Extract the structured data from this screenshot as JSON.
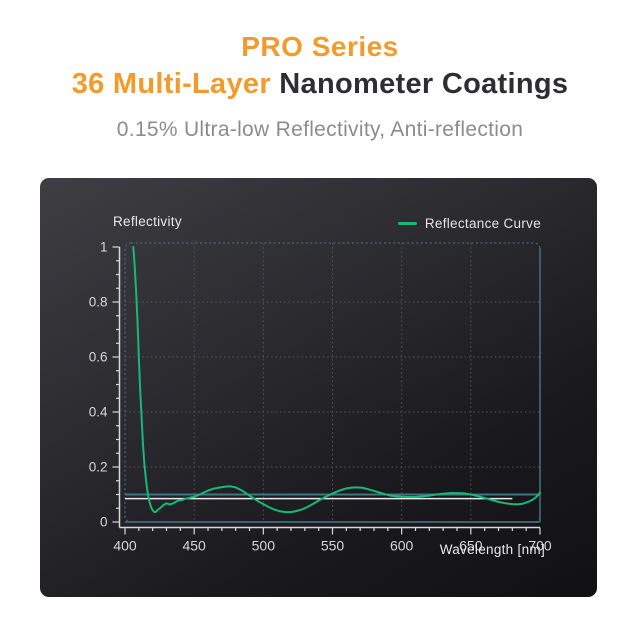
{
  "header": {
    "line1": "PRO Series",
    "line2_highlight": "36 Multi-Layer ",
    "line2_rest": "Nanometer Coatings",
    "subtitle": "0.15% Ultra-low Reflectivity, Anti-reflection",
    "accent_color": "#F39A2B",
    "title_color": "#2E2E32",
    "subtitle_color": "#8C8C8E"
  },
  "chart_data": {
    "type": "line",
    "title": "Reflectivity",
    "xlabel": "Wavelength [nm]",
    "xlim": [
      400,
      700
    ],
    "ylim": [
      0,
      1
    ],
    "x_ticks": [
      400,
      450,
      500,
      550,
      600,
      650,
      700
    ],
    "y_ticks": [
      0,
      0.2,
      0.4,
      0.6,
      0.8,
      1
    ],
    "x_minor_step": 10,
    "y_minor_step": 0.05,
    "grid": "dotted",
    "legend_position": "top-right",
    "colors": {
      "curve": "#17B978",
      "frame": "#3E6B7B",
      "grid": "#56565C",
      "axis": "#D9D9DC",
      "tick_text": "#D6D6DA",
      "reference_teal": "#3E7586",
      "reference_white": "#E8E8EA"
    },
    "reference_lines": [
      {
        "name": "reference-level",
        "value": 0.1,
        "x_from": 400,
        "x_to": 700,
        "color_key": "reference_teal",
        "width": 2
      },
      {
        "name": "average-level",
        "value": 0.085,
        "x_from": 400,
        "x_to": 680,
        "color_key": "reference_white",
        "width": 1.6
      }
    ],
    "series": [
      {
        "name": "Reflectance Curve",
        "color": "#17B978",
        "points": [
          [
            406,
            1.0
          ],
          [
            407,
            0.93
          ],
          [
            408,
            0.84
          ],
          [
            409,
            0.73
          ],
          [
            410,
            0.6
          ],
          [
            411,
            0.48
          ],
          [
            412,
            0.38
          ],
          [
            413,
            0.28
          ],
          [
            414,
            0.21
          ],
          [
            415,
            0.16
          ],
          [
            416,
            0.12
          ],
          [
            417,
            0.09
          ],
          [
            418,
            0.068
          ],
          [
            419,
            0.052
          ],
          [
            420,
            0.042
          ],
          [
            421,
            0.037
          ],
          [
            422,
            0.036
          ],
          [
            423,
            0.04
          ],
          [
            424,
            0.045
          ],
          [
            426,
            0.053
          ],
          [
            428,
            0.062
          ],
          [
            430,
            0.068
          ],
          [
            432,
            0.064
          ],
          [
            434,
            0.066
          ],
          [
            436,
            0.071
          ],
          [
            438,
            0.077
          ],
          [
            440,
            0.079
          ],
          [
            442,
            0.081
          ],
          [
            444,
            0.085
          ],
          [
            446,
            0.087
          ],
          [
            448,
            0.09
          ],
          [
            450,
            0.092
          ],
          [
            453,
            0.098
          ],
          [
            456,
            0.105
          ],
          [
            460,
            0.114
          ],
          [
            464,
            0.121
          ],
          [
            468,
            0.125
          ],
          [
            472,
            0.128
          ],
          [
            476,
            0.13
          ],
          [
            480,
            0.126
          ],
          [
            484,
            0.116
          ],
          [
            488,
            0.103
          ],
          [
            492,
            0.089
          ],
          [
            496,
            0.076
          ],
          [
            500,
            0.065
          ],
          [
            504,
            0.054
          ],
          [
            508,
            0.045
          ],
          [
            512,
            0.039
          ],
          [
            516,
            0.036
          ],
          [
            520,
            0.036
          ],
          [
            524,
            0.04
          ],
          [
            528,
            0.046
          ],
          [
            532,
            0.055
          ],
          [
            536,
            0.066
          ],
          [
            540,
            0.078
          ],
          [
            544,
            0.089
          ],
          [
            548,
            0.099
          ],
          [
            552,
            0.108
          ],
          [
            556,
            0.116
          ],
          [
            560,
            0.122
          ],
          [
            564,
            0.125
          ],
          [
            568,
            0.126
          ],
          [
            572,
            0.124
          ],
          [
            576,
            0.119
          ],
          [
            580,
            0.113
          ],
          [
            584,
            0.107
          ],
          [
            588,
            0.101
          ],
          [
            592,
            0.096
          ],
          [
            596,
            0.093
          ],
          [
            600,
            0.092
          ],
          [
            605,
            0.091
          ],
          [
            610,
            0.091
          ],
          [
            615,
            0.093
          ],
          [
            620,
            0.096
          ],
          [
            625,
            0.1
          ],
          [
            630,
            0.103
          ],
          [
            635,
            0.105
          ],
          [
            640,
            0.105
          ],
          [
            645,
            0.104
          ],
          [
            650,
            0.1
          ],
          [
            655,
            0.094
          ],
          [
            660,
            0.087
          ],
          [
            665,
            0.08
          ],
          [
            670,
            0.073
          ],
          [
            675,
            0.068
          ],
          [
            680,
            0.065
          ],
          [
            684,
            0.064
          ],
          [
            688,
            0.067
          ],
          [
            692,
            0.074
          ],
          [
            695,
            0.082
          ],
          [
            697,
            0.09
          ],
          [
            699,
            0.1
          ],
          [
            700,
            0.107
          ]
        ]
      }
    ]
  }
}
